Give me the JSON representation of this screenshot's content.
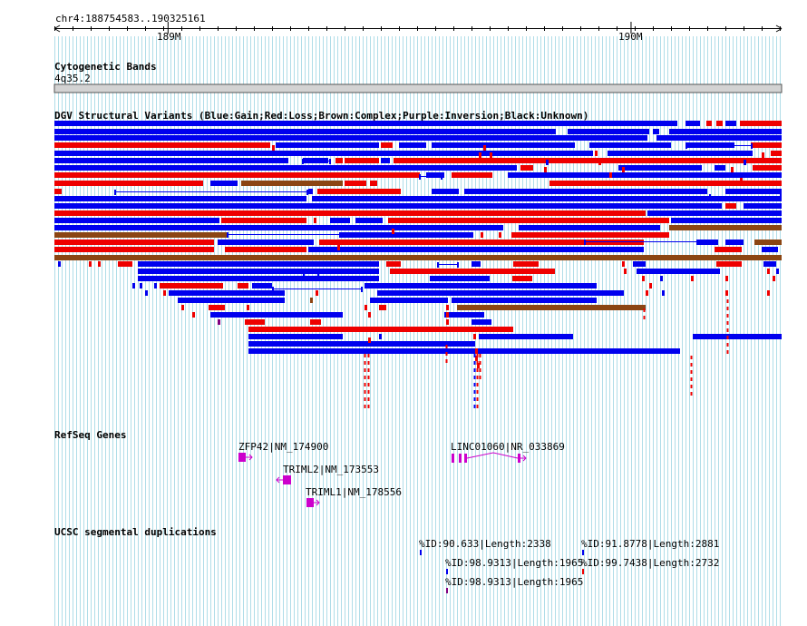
{
  "colors": {
    "gain": "#0000ee",
    "loss": "#ee0000",
    "complex": "#8b4513",
    "inversion": "#800080",
    "unknown": "#000000",
    "gene": "#cc00cc",
    "grid": "#b0dde8",
    "band": "#d3d3d3"
  },
  "ruler": {
    "location": "chr4:188754583..190325161",
    "ticks": [
      {
        "label": "189M",
        "pos": 189000000
      },
      {
        "label": "190M",
        "pos": 190000000
      }
    ],
    "start": 188754583,
    "end": 190325161
  },
  "tracks": {
    "cytoband": {
      "title": "Cytogenetic Bands",
      "band": "4q35.2"
    },
    "dgv": {
      "title": "DGV Structural Variants (Blue:Gain;Red:Loss;Brown:Complex;Purple:Inversion;Black:Unknown)"
    },
    "refseq": {
      "title": "RefSeq Genes",
      "genes": [
        {
          "label": "ZFP42|NM_174900"
        },
        {
          "label": "TRIML2|NM_173553"
        },
        {
          "label": "TRIML1|NM_178556"
        },
        {
          "label": "LINC01060|NR_033869"
        }
      ]
    },
    "segdup": {
      "title": "UCSC segmental duplications",
      "features": [
        {
          "label": "%ID:90.633|Length:2338"
        },
        {
          "label": "%ID:98.9313|Length:1965"
        },
        {
          "label": "%ID:98.9313|Length:1965"
        },
        {
          "label": "%ID:91.8778|Length:2881"
        },
        {
          "label": "%ID:99.7438|Length:2732"
        }
      ]
    }
  }
}
